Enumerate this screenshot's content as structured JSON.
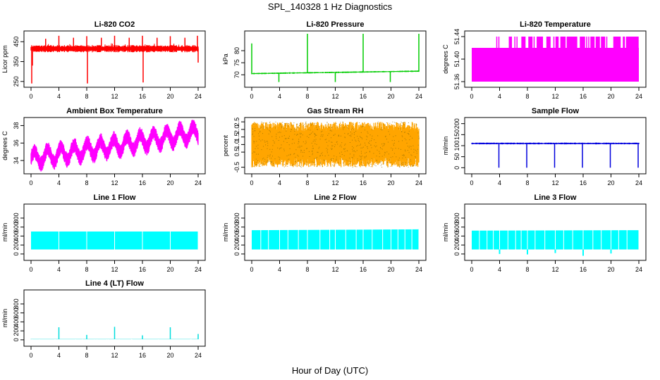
{
  "figure": {
    "title": "SPL_140328  1 Hz Diagnostics",
    "xlabel": "Hour of Day (UTC)"
  },
  "chart_data": [
    {
      "type": "line",
      "title": "Li-820 CO2",
      "ylabel": "Licor ppm",
      "color": "#ff0000",
      "x_ticks": [
        "0",
        "4",
        "8",
        "12",
        "16",
        "20",
        "24"
      ],
      "y_ticks": [
        "250",
        "350",
        "450"
      ],
      "xlim": [
        0,
        24
      ],
      "ylim": [
        235,
        490
      ],
      "baseline": 415,
      "band": 18,
      "spikes": [
        [
          0.1,
          240
        ],
        [
          0.2,
          330
        ],
        [
          2.1,
          465
        ],
        [
          4.0,
          480
        ],
        [
          6.1,
          470
        ],
        [
          8.0,
          478
        ],
        [
          8.1,
          240
        ],
        [
          10.1,
          470
        ],
        [
          12.0,
          480
        ],
        [
          14.1,
          470
        ],
        [
          16.0,
          480
        ],
        [
          16.1,
          245
        ],
        [
          18.1,
          470
        ],
        [
          20.0,
          478
        ],
        [
          22.1,
          470
        ],
        [
          23.9,
          480
        ],
        [
          24.0,
          345
        ]
      ],
      "noise_spikes": 40,
      "noise_amp": 45
    },
    {
      "type": "line",
      "title": "Li-820 Pressure",
      "ylabel": "kPa",
      "color": "#00cc00",
      "x_ticks": [
        "0",
        "4",
        "8",
        "12",
        "16",
        "20",
        "24"
      ],
      "y_ticks": [
        "70",
        "75",
        "80"
      ],
      "xlim": [
        0,
        24
      ],
      "ylim": [
        66,
        87
      ],
      "baseline_start": 70.5,
      "baseline_end": 71.5,
      "band": 0.3,
      "spikes": [
        [
          0.0,
          83
        ],
        [
          3.9,
          67
        ],
        [
          8.0,
          87
        ],
        [
          12.0,
          67
        ],
        [
          16.0,
          87
        ],
        [
          19.9,
          67
        ],
        [
          24.0,
          87
        ]
      ],
      "noise_spikes": 0,
      "noise_amp": 0
    },
    {
      "type": "area",
      "title": "Li-820 Temperature",
      "ylabel": "degrees C",
      "color": "#ff00ff",
      "x_ticks": [
        "0",
        "4",
        "8",
        "12",
        "16",
        "20",
        "24"
      ],
      "y_ticks": [
        "51.36",
        "51.40",
        "51.44"
      ],
      "xlim": [
        0,
        24
      ],
      "ylim": [
        51.355,
        51.445
      ],
      "fill_to": 51.36,
      "level_low": 51.42,
      "level_high": 51.44,
      "high_segments": [
        [
          3.6,
          4.0
        ],
        [
          5.4,
          5.8
        ],
        [
          6.2,
          6.6
        ],
        [
          7.2,
          7.8
        ],
        [
          8.2,
          9.0
        ],
        [
          9.4,
          10.2
        ],
        [
          10.8,
          11.4
        ],
        [
          11.8,
          12.6
        ],
        [
          12.8,
          15.2
        ],
        [
          15.6,
          19.6
        ],
        [
          20.4,
          23.9
        ]
      ]
    },
    {
      "type": "band",
      "title": "Ambient Box Temperature",
      "ylabel": "degrees C",
      "color": "#ff00ff",
      "x_ticks": [
        "0",
        "4",
        "8",
        "12",
        "16",
        "20",
        "24"
      ],
      "y_ticks": [
        "34",
        "36",
        "38"
      ],
      "xlim": [
        0,
        24
      ],
      "ylim": [
        32.8,
        38.6
      ],
      "center_start": 34.2,
      "center_end": 37.2,
      "oscillation_amp": 0.8,
      "oscillation_period_h": 1.9,
      "band": 0.9
    },
    {
      "type": "band",
      "title": "Gas Stream RH",
      "ylabel": "percent",
      "color": "#ffa500",
      "stipple_color": "#8b6a00",
      "x_ticks": [
        "0",
        "4",
        "8",
        "12",
        "16",
        "20",
        "24"
      ],
      "y_ticks": [
        "-0.5",
        "0.5",
        "1.0",
        "1.5",
        "2.0",
        "2.5"
      ],
      "xlim": [
        0,
        24
      ],
      "ylim": [
        -0.75,
        2.6
      ],
      "center_start": 1.0,
      "center_end": 1.0,
      "oscillation_amp": 0,
      "oscillation_period_h": 1,
      "band": 1.5
    },
    {
      "type": "line",
      "title": "Sample Flow",
      "ylabel": "ml/min",
      "color": "#0000dd",
      "x_ticks": [
        "0",
        "4",
        "8",
        "12",
        "16",
        "20",
        "24"
      ],
      "y_ticks": [
        "0",
        "50",
        "100",
        "150",
        "200"
      ],
      "xlim": [
        0,
        24
      ],
      "ylim": [
        -15,
        215
      ],
      "baseline": 110,
      "band": 4,
      "spikes": [
        [
          3.9,
          0
        ],
        [
          7.9,
          0
        ],
        [
          11.9,
          0
        ],
        [
          15.9,
          0
        ],
        [
          19.9,
          0
        ],
        [
          23.9,
          0
        ]
      ],
      "noise_spikes": 0,
      "noise_amp": 0
    },
    {
      "type": "area",
      "title": "Line 1 Flow",
      "ylabel": "ml/min",
      "color": "#00ffff",
      "x_ticks": [
        "0",
        "4",
        "8",
        "12",
        "16",
        "20",
        "24"
      ],
      "y_ticks": [
        "0",
        "200",
        "400",
        "600",
        "800"
      ],
      "xlim": [
        0,
        24
      ],
      "ylim": [
        -80,
        1050
      ],
      "fill_to": 100,
      "level_low": 500,
      "level_high": 500,
      "gaps": [
        4.0,
        8.0,
        12.0,
        16.0,
        20.0,
        24.0
      ],
      "dips": []
    },
    {
      "type": "area",
      "title": "Line 2 Flow",
      "ylabel": "ml/min",
      "color": "#00ffff",
      "x_ticks": [
        "0",
        "4",
        "8",
        "12",
        "16",
        "20",
        "24"
      ],
      "y_ticks": [
        "0",
        "200",
        "400",
        "600",
        "800"
      ],
      "xlim": [
        0,
        24
      ],
      "ylim": [
        -80,
        1050
      ],
      "fill_to": 100,
      "level_low": 530,
      "level_high": 550,
      "gaps": [
        1.3,
        2.4,
        4.0,
        5.2,
        6.7,
        8.0,
        9.8,
        11.2,
        12.0,
        13.5,
        15.0,
        16.0,
        17.3,
        18.8,
        20.0,
        21.0,
        22.0,
        23.0,
        24.0
      ],
      "dips": []
    },
    {
      "type": "area",
      "title": "Line 3 Flow",
      "ylabel": "ml/min",
      "color": "#00ffff",
      "x_ticks": [
        "0",
        "4",
        "8",
        "12",
        "16",
        "20",
        "24"
      ],
      "y_ticks": [
        "0",
        "200",
        "400",
        "600",
        "800"
      ],
      "xlim": [
        0,
        24
      ],
      "ylim": [
        -80,
        1050
      ],
      "fill_to": 100,
      "level_low": 520,
      "level_high": 530,
      "gaps": [
        1.1,
        2.2,
        3.1,
        4.0,
        5.2,
        6.3,
        7.1,
        8.0,
        9.1,
        10.5,
        12.0,
        13.2,
        14.5,
        16.0,
        17.4,
        18.6,
        20.0,
        21.1,
        22.3,
        24.0
      ],
      "dips": [
        [
          4.0,
          0
        ],
        [
          8.0,
          -10
        ],
        [
          12.0,
          20
        ],
        [
          16.0,
          -40
        ],
        [
          20.0,
          10
        ]
      ]
    },
    {
      "type": "line",
      "title": "Line 4 (LT) Flow",
      "ylabel": "ml/min",
      "color": "#00dddd",
      "x_ticks": [
        "0",
        "4",
        "8",
        "12",
        "16",
        "20",
        "24"
      ],
      "y_ticks": [
        "0",
        "200",
        "400",
        "600",
        "800"
      ],
      "xlim": [
        0,
        24
      ],
      "ylim": [
        -80,
        1050
      ],
      "baseline": 15,
      "band": 3,
      "spikes": [
        [
          4.0,
          280
        ],
        [
          8.0,
          110
        ],
        [
          12.0,
          290
        ],
        [
          16.0,
          100
        ],
        [
          20.0,
          280
        ],
        [
          24.0,
          130
        ]
      ],
      "noise_spikes": 0,
      "noise_amp": 0
    }
  ]
}
